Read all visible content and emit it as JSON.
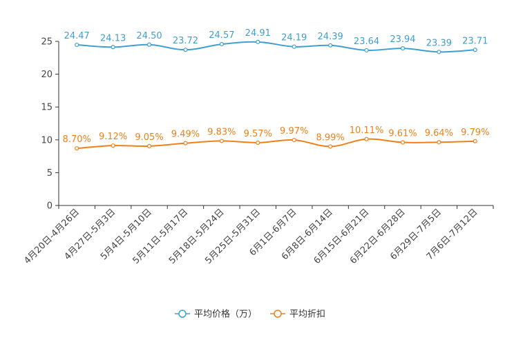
{
  "chart_data": {
    "type": "line",
    "title": "",
    "xlabel": "",
    "ylabel": "",
    "ylim": [
      0,
      25
    ],
    "yticks": [
      0,
      5,
      10,
      15,
      20,
      25
    ],
    "grid": false,
    "legend_position": "bottom-center",
    "categories": [
      "4月20日-4月26日",
      "4月27日-5月3日",
      "5月4日-5月10日",
      "5月11日-5月17日",
      "5月18日-5月24日",
      "5月25日-5月31日",
      "6月1日-6月7日",
      "6月8日-6月14日",
      "6月15日-6月21日",
      "6月22日-6月28日",
      "6月29日-7月5日",
      "7月6日-7月12日"
    ],
    "series": [
      {
        "name": "平均价格（万）",
        "color": "#3e9fcf",
        "values": [
          24.47,
          24.13,
          24.5,
          23.72,
          24.57,
          24.91,
          24.19,
          24.39,
          23.64,
          23.94,
          23.39,
          23.71
        ],
        "labels": [
          "24.47",
          "24.13",
          "24.50",
          "23.72",
          "24.57",
          "24.91",
          "24.19",
          "24.39",
          "23.64",
          "23.94",
          "23.39",
          "23.71"
        ]
      },
      {
        "name": "平均折扣",
        "color": "#f07f17",
        "values": [
          8.7,
          9.12,
          9.05,
          9.49,
          9.83,
          9.57,
          9.97,
          8.99,
          10.11,
          9.61,
          9.64,
          9.79
        ],
        "labels": [
          "8.70%",
          "9.12%",
          "9.05%",
          "9.49%",
          "9.83%",
          "9.57%",
          "9.97%",
          "8.99%",
          "10.11%",
          "9.61%",
          "9.64%",
          "9.79%"
        ]
      }
    ]
  }
}
